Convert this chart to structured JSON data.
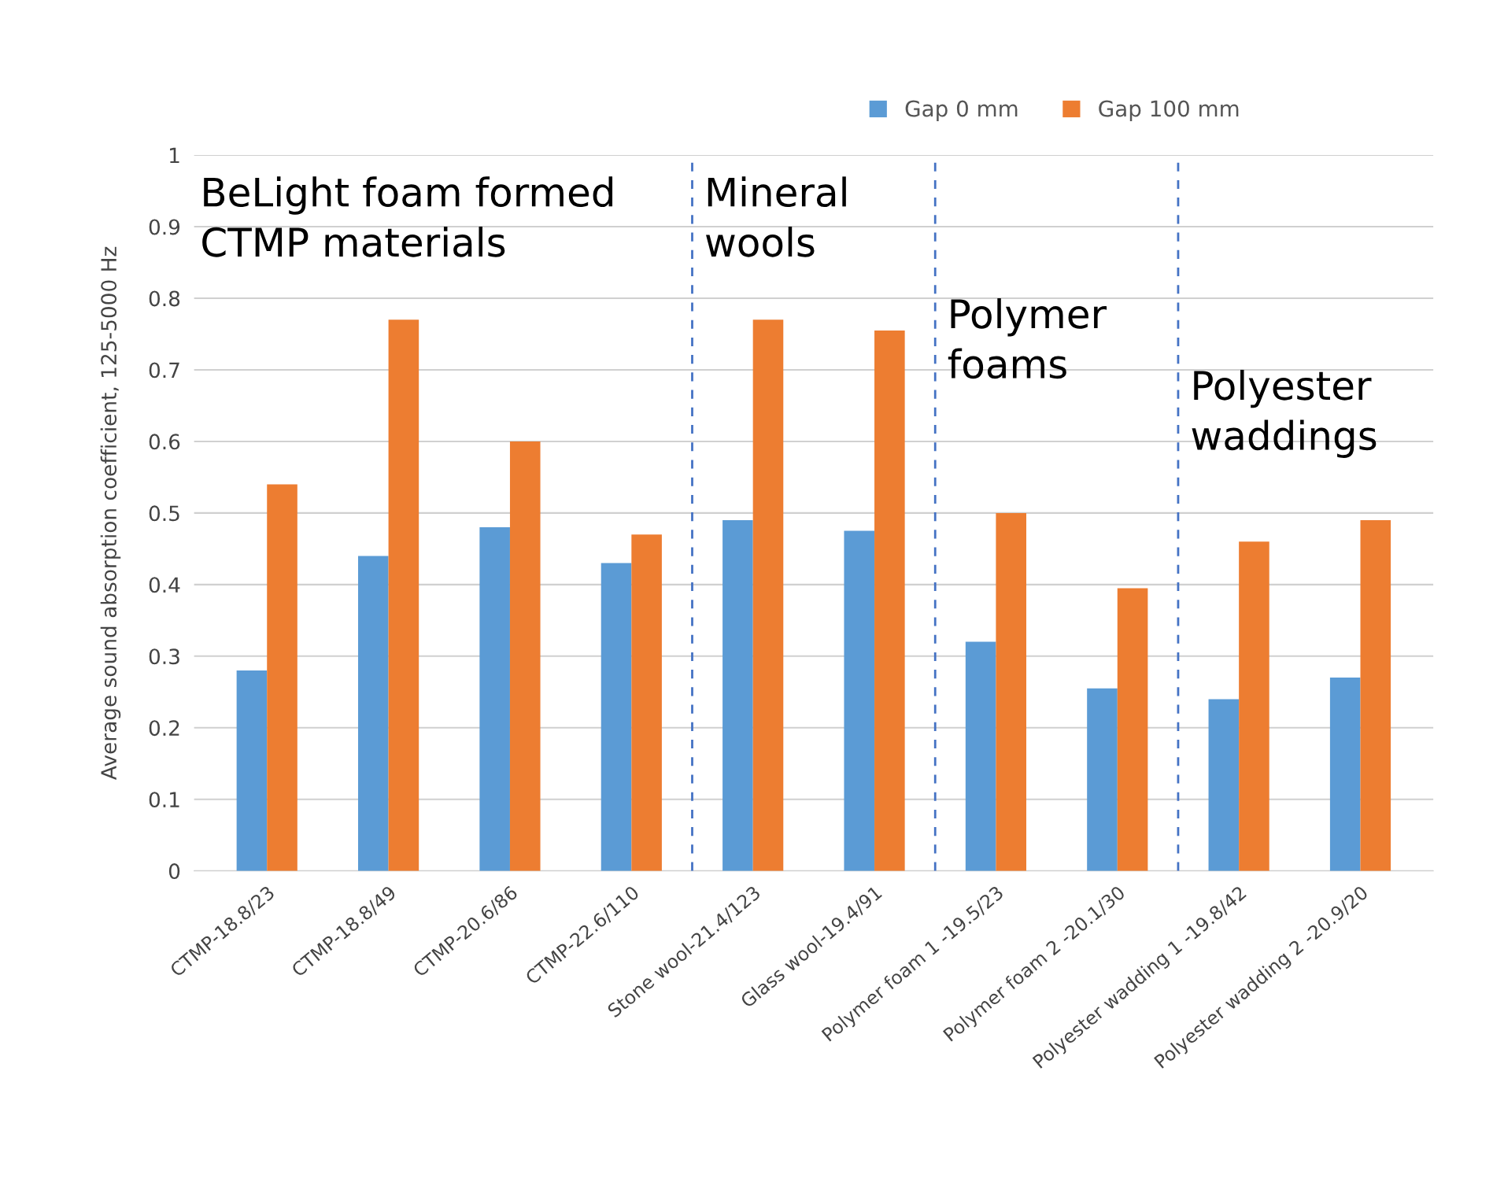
{
  "chart_data": {
    "type": "bar",
    "ylabel": "Average sound absorption coefficient, 125-5000 Hz",
    "categories": [
      "CTMP-18.8/23",
      "CTMP-18.8/49",
      "CTMP-20.6/86",
      "CTMP-22.6/110",
      "Stone wool-21.4/123",
      "Glass wool-19.4/91",
      "Polymer foam 1 -19.5/23",
      "Polymer foam 2 -20.1/30",
      "Polyester wadding 1 -19.8/42",
      "Polyester wadding 2 -20.9/20"
    ],
    "series": [
      {
        "name": "Gap 0 mm",
        "color": "#5b9bd5",
        "values": [
          0.28,
          0.44,
          0.48,
          0.43,
          0.49,
          0.475,
          0.32,
          0.255,
          0.24,
          0.27
        ]
      },
      {
        "name": "Gap 100 mm",
        "color": "#ed7d31",
        "values": [
          0.54,
          0.77,
          0.6,
          0.47,
          0.77,
          0.755,
          0.5,
          0.395,
          0.46,
          0.49
        ]
      }
    ],
    "ylim": [
      0,
      1
    ],
    "yticks": [
      0,
      0.1,
      0.2,
      0.3,
      0.4,
      0.5,
      0.6,
      0.7,
      0.8,
      0.9,
      1
    ],
    "grid": "y",
    "legend": "top right",
    "annotations": [
      "BeLight foam formed\nCTMP materials",
      "Mineral\nwools",
      "Polymer\nfoams",
      "Polyester\nwaddings"
    ]
  }
}
